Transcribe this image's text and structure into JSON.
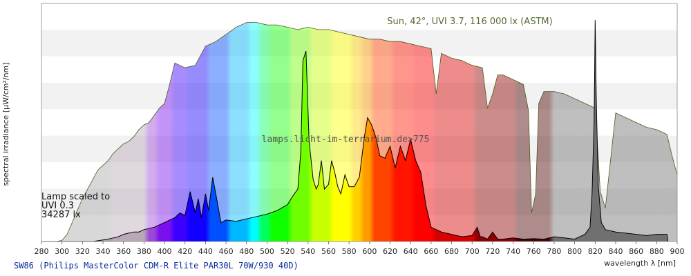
{
  "chart_data": {
    "type": "area",
    "xlabel": "wavelength λ [nm]",
    "ylabel": "spectral irradiance [µW/cm²/nm]",
    "xlim": [
      280,
      900
    ],
    "x_ticks": [
      280,
      300,
      320,
      340,
      360,
      380,
      400,
      420,
      440,
      460,
      480,
      500,
      520,
      540,
      560,
      580,
      600,
      620,
      640,
      660,
      680,
      700,
      720,
      740,
      760,
      780,
      800,
      820,
      840,
      860,
      880,
      900
    ],
    "ylim": [
      0,
      1.0
    ],
    "grid": "horizontal bands",
    "annotation_sun": "Sun, 42°, UVI 3.7, 116 000 lx (ASTM)",
    "annotation_lamp": [
      "Lamp scaled to",
      "UVI 0.3",
      "34287 lx"
    ],
    "watermark": "lamps.licht-im-terrarium.de>775",
    "footer": "SW86 (Philips MasterColor CDM-R Elite PAR30L 70W/930 40D)",
    "series": [
      {
        "role": "sun",
        "x": [
          280,
          295,
          300,
          305,
          310,
          315,
          320,
          325,
          330,
          335,
          340,
          345,
          350,
          355,
          360,
          365,
          370,
          375,
          380,
          385,
          390,
          395,
          400,
          405,
          410,
          420,
          430,
          440,
          450,
          460,
          470,
          480,
          490,
          500,
          510,
          520,
          530,
          540,
          550,
          560,
          570,
          580,
          590,
          600,
          610,
          620,
          630,
          640,
          650,
          660,
          665,
          670,
          680,
          690,
          700,
          710,
          715,
          720,
          725,
          730,
          740,
          750,
          755,
          758,
          762,
          765,
          770,
          780,
          790,
          800,
          810,
          820,
          825,
          830,
          835,
          840,
          850,
          860,
          870,
          880,
          890,
          895,
          900
        ],
        "y": [
          0,
          0,
          0.005,
          0.03,
          0.08,
          0.13,
          0.18,
          0.22,
          0.26,
          0.3,
          0.32,
          0.34,
          0.37,
          0.39,
          0.41,
          0.42,
          0.44,
          0.47,
          0.49,
          0.5,
          0.53,
          0.56,
          0.58,
          0.66,
          0.75,
          0.73,
          0.74,
          0.82,
          0.84,
          0.87,
          0.9,
          0.92,
          0.92,
          0.91,
          0.91,
          0.9,
          0.89,
          0.9,
          0.89,
          0.89,
          0.88,
          0.87,
          0.86,
          0.85,
          0.85,
          0.84,
          0.84,
          0.83,
          0.82,
          0.81,
          0.62,
          0.79,
          0.77,
          0.76,
          0.74,
          0.73,
          0.56,
          0.62,
          0.7,
          0.7,
          0.68,
          0.66,
          0.55,
          0.12,
          0.2,
          0.58,
          0.63,
          0.63,
          0.62,
          0.6,
          0.58,
          0.56,
          0.21,
          0.14,
          0.34,
          0.54,
          0.52,
          0.5,
          0.48,
          0.47,
          0.45,
          0.36,
          0.28
        ]
      },
      {
        "role": "lamp",
        "x": [
          280,
          300,
          330,
          345,
          350,
          355,
          360,
          365,
          370,
          375,
          380,
          390,
          400,
          405,
          410,
          415,
          420,
          425,
          430,
          433,
          436,
          440,
          443,
          447,
          450,
          455,
          460,
          470,
          480,
          490,
          500,
          510,
          520,
          525,
          530,
          533,
          535,
          538,
          541,
          545,
          548,
          550,
          553,
          556,
          560,
          563,
          566,
          569,
          572,
          576,
          580,
          585,
          590,
          595,
          598,
          602,
          606,
          610,
          615,
          620,
          625,
          630,
          635,
          640,
          645,
          650,
          655,
          660,
          670,
          680,
          690,
          700,
          705,
          708,
          710,
          715,
          720,
          725,
          730,
          740,
          750,
          760,
          770,
          780,
          790,
          800,
          810,
          815,
          817,
          819,
          820,
          821,
          823,
          826,
          830,
          840,
          850,
          860,
          870,
          880,
          890,
          891
        ],
        "y": [
          0,
          0,
          0,
          0.01,
          0.015,
          0.02,
          0.03,
          0.035,
          0.04,
          0.04,
          0.05,
          0.06,
          0.08,
          0.09,
          0.1,
          0.12,
          0.11,
          0.21,
          0.12,
          0.18,
          0.1,
          0.2,
          0.13,
          0.27,
          0.2,
          0.08,
          0.09,
          0.085,
          0.095,
          0.105,
          0.115,
          0.13,
          0.155,
          0.19,
          0.22,
          0.38,
          0.76,
          0.8,
          0.42,
          0.26,
          0.22,
          0.24,
          0.34,
          0.22,
          0.24,
          0.34,
          0.29,
          0.23,
          0.2,
          0.28,
          0.23,
          0.23,
          0.27,
          0.44,
          0.52,
          0.49,
          0.44,
          0.36,
          0.35,
          0.4,
          0.31,
          0.4,
          0.34,
          0.43,
          0.34,
          0.29,
          0.15,
          0.06,
          0.04,
          0.03,
          0.02,
          0.025,
          0.06,
          0.02,
          0.02,
          0.01,
          0.04,
          0.01,
          0.01,
          0.015,
          0.01,
          0.012,
          0.01,
          0.02,
          0.015,
          0.01,
          0.03,
          0.06,
          0.2,
          0.5,
          0.93,
          0.62,
          0.24,
          0.08,
          0.05,
          0.04,
          0.035,
          0.03,
          0.025,
          0.03,
          0.03,
          0
        ]
      }
    ]
  }
}
